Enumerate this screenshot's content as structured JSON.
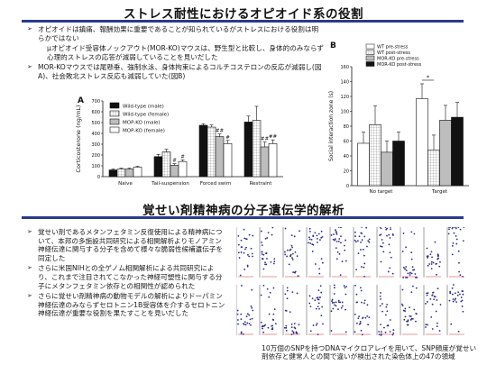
{
  "section1": {
    "title": "ストレス耐性におけるオピオイド系の役割",
    "bullets": [
      "オピオイドは鎮痛、報酬効果に重要であることが知られているがストレスにおける役割は明らかではない",
      "μオピオイド受容体ノックアウト(MOR-KO)マウスは、野生型と比較し、身体的のみならず心理的ストレスの応答が減弱していることを見いだした",
      "MOR-KOマウスでは尾懸垂、強制水泳、身体拘束によるコルチコステロンの反応が減弱し(図A)、社会敗北ストレス反応も減弱していた(図B)"
    ],
    "bullet_marks": [
      "➢",
      "",
      "➢"
    ]
  },
  "chartA": {
    "letter": "A",
    "chart_data": {
      "type": "bar",
      "ylabel": "Corticosterone (ng/mL)",
      "ylim": [
        0,
        700
      ],
      "yticks": [
        0,
        100,
        200,
        300,
        400,
        500,
        600,
        700
      ],
      "categories": [
        "Naive",
        "Tail-suspension",
        "Forced swim",
        "Restraint"
      ],
      "series": [
        {
          "name": "Wild-type (male)",
          "values": [
            62,
            185,
            475,
            505
          ],
          "errors": [
            8,
            20,
            15,
            55
          ]
        },
        {
          "name": "Wild-type (female)",
          "values": [
            70,
            228,
            458,
            520
          ],
          "errors": [
            8,
            25,
            20,
            130
          ]
        },
        {
          "name": "MOP-KO (male)",
          "values": [
            70,
            105,
            370,
            275
          ],
          "errors": [
            8,
            15,
            25,
            45
          ]
        },
        {
          "name": "MOP-KO (female)",
          "values": [
            88,
            140,
            305,
            305
          ],
          "errors": [
            8,
            15,
            30,
            35
          ]
        }
      ],
      "annotations": [
        {
          "category": 1,
          "series": 2,
          "text": "#"
        },
        {
          "category": 1,
          "series": 3,
          "text": "#"
        },
        {
          "category": 2,
          "series": 2,
          "text": "##"
        },
        {
          "category": 2,
          "series": 3,
          "text": "#"
        },
        {
          "category": 3,
          "series": 2,
          "text": "##"
        },
        {
          "category": 3,
          "series": 3,
          "text": "##"
        }
      ],
      "legend": "top-left"
    }
  },
  "chartB": {
    "letter": "B",
    "chart_data": {
      "type": "bar",
      "ylabel": "Social interaction zone (s)",
      "ylim": [
        0,
        160
      ],
      "yticks": [
        0,
        20,
        40,
        60,
        80,
        100,
        120,
        140,
        160
      ],
      "categories": [
        "No target",
        "Target"
      ],
      "series": [
        {
          "name": "WT pre-stress",
          "values": [
            57,
            117
          ],
          "errors": [
            15,
            20
          ]
        },
        {
          "name": "WT post-stress",
          "values": [
            82,
            48
          ],
          "errors": [
            25,
            20
          ]
        },
        {
          "name": "MOR-KO pre-stress",
          "values": [
            45,
            88
          ],
          "errors": [
            15,
            20
          ]
        },
        {
          "name": "MOR-KO post-stress",
          "values": [
            60,
            92
          ],
          "errors": [
            12,
            20
          ]
        }
      ],
      "annotations": [
        {
          "text": "*"
        }
      ],
      "legend": "top-right"
    }
  },
  "section2": {
    "title": "覚せい剤精神病の分子遺伝学的解析",
    "bullets": [
      "覚せい剤であるメタンフェタミン反復使用による精神病について、本邦の多施設共同研究による相関解析よりモノアミン神経伝達に関与する分子を含めて様々な脆弱性候補遺伝子を同定した",
      "さらに米国NIHとの全ゲノム相関解析による共同研究により、これまで注目されてこなかった神経可塑性に関与する分子にメタンフェタミン依存との相関性が認められた",
      "さらに覚せい剤精神病の動物モデルの解析によりドーパミン神経伝達のみならずセロトニン1B受容体を介するセロトニン神経伝達が重要な役割を果たすことを見いだした"
    ],
    "caption": "10万個のSNPを持つDNAマイクロアレイを用いて、SNP頻度が覚せい剤依存と健常人との間で違いが検出された染色体上の47の領域"
  },
  "colors": {
    "rule": "#2b3a8c",
    "snp_dot": "#2a2a8a",
    "bar_dark": "#111111",
    "bar_gray": "#bdbdbd"
  }
}
